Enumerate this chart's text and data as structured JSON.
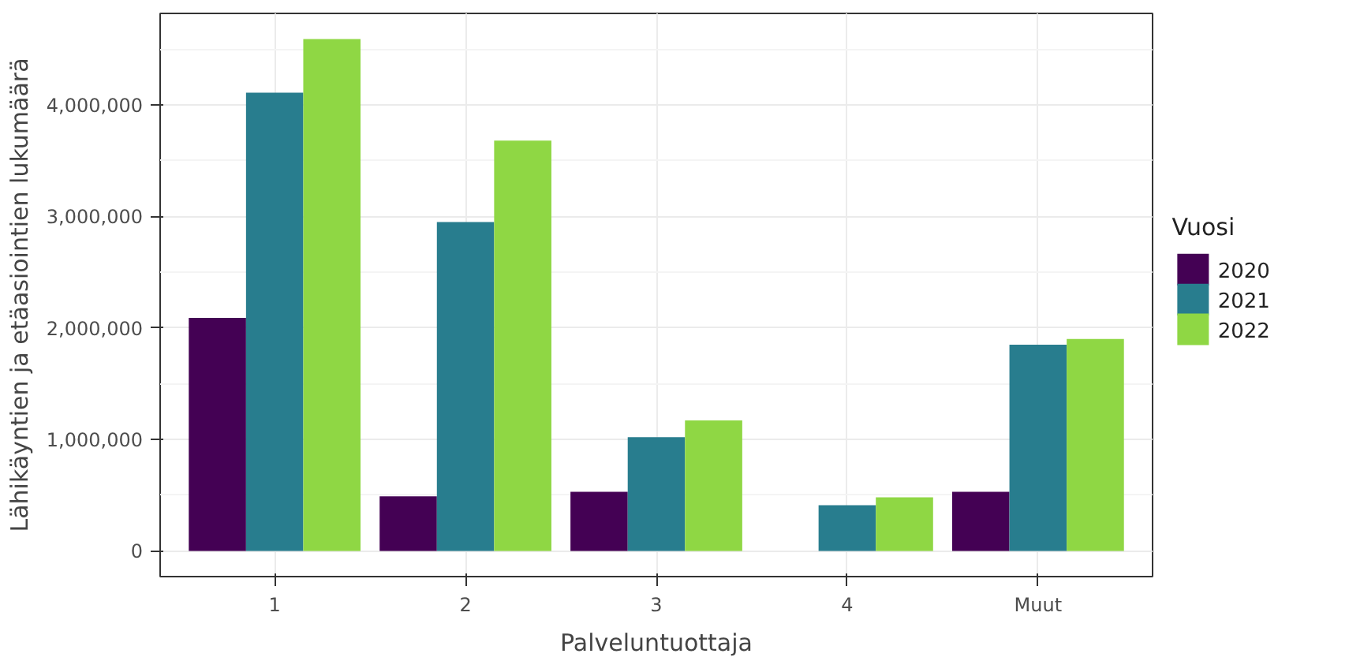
{
  "chart_data": {
    "type": "bar",
    "xlabel": "Palveluntuottaja",
    "ylabel": "Lähikäyntien ja etäasiointien lukumäärä",
    "legend_title": "Vuosi",
    "categories": [
      "1",
      "2",
      "3",
      "4",
      "Muut"
    ],
    "series": [
      {
        "name": "2020",
        "color": "#440154",
        "values": [
          2090000,
          490000,
          530000,
          null,
          530000
        ]
      },
      {
        "name": "2021",
        "color": "#287d8e",
        "values": [
          4110000,
          2950000,
          1020000,
          410000,
          1850000
        ]
      },
      {
        "name": "2022",
        "color": "#8fd744",
        "values": [
          4590000,
          3680000,
          1170000,
          480000,
          1900000
        ]
      }
    ],
    "ylim": [
      -230000,
      4820000
    ],
    "yticks": [
      {
        "value": 0,
        "label": "0"
      },
      {
        "value": 1000000,
        "label": "1,000,000"
      },
      {
        "value": 2000000,
        "label": "2,000,000"
      },
      {
        "value": 3000000,
        "label": "3,000,000"
      },
      {
        "value": 4000000,
        "label": "4,000,000"
      }
    ],
    "grid": true,
    "legend": "right"
  }
}
